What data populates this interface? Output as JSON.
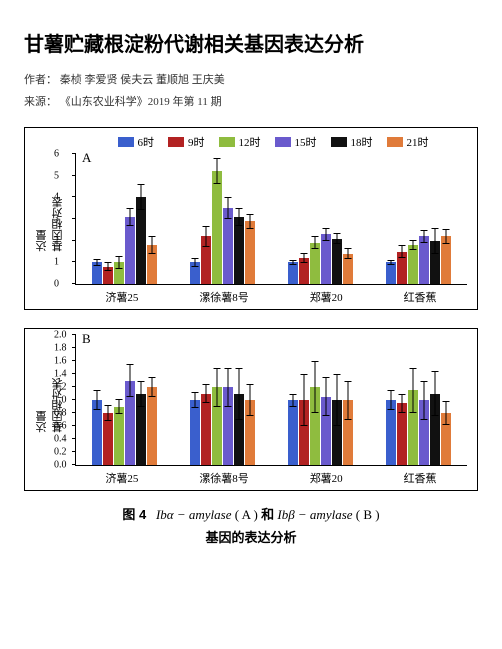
{
  "title": "甘薯贮藏根淀粉代谢相关基因表达分析",
  "authors_label": "作者：",
  "authors": "秦桢  李爱贤  侯夫云  董顺旭  王庆美",
  "source_label": "来源：",
  "source": "《山东农业科学》2019 年第 11 期",
  "legend": [
    {
      "label": "6时",
      "color": "#3a5fcd"
    },
    {
      "label": "9时",
      "color": "#b22222"
    },
    {
      "label": "12时",
      "color": "#8fbc3f"
    },
    {
      "label": "15时",
      "color": "#6a5acd"
    },
    {
      "label": "18时",
      "color": "#111111"
    },
    {
      "label": "21时",
      "color": "#e07b3a"
    }
  ],
  "charts": [
    {
      "panel": "A",
      "ylabel": "基因相对表达量",
      "ymax": 6,
      "yticks": [
        0,
        1,
        2,
        3,
        4,
        5,
        6
      ],
      "categories": [
        "济薯25",
        "漯徐薯8号",
        "郑薯20",
        "红香蕉"
      ],
      "series": [
        {
          "color": "#3a5fcd",
          "values": [
            1.0,
            1.0,
            1.0,
            1.0
          ],
          "err": [
            0.15,
            0.2,
            0.1,
            0.12
          ]
        },
        {
          "color": "#b22222",
          "values": [
            0.8,
            2.2,
            1.2,
            1.5
          ],
          "err": [
            0.2,
            0.5,
            0.25,
            0.3
          ]
        },
        {
          "color": "#8fbc3f",
          "values": [
            1.0,
            5.2,
            1.9,
            1.8
          ],
          "err": [
            0.3,
            0.6,
            0.3,
            0.25
          ]
        },
        {
          "color": "#6a5acd",
          "values": [
            3.1,
            3.5,
            2.3,
            2.2
          ],
          "err": [
            0.4,
            0.5,
            0.3,
            0.3
          ]
        },
        {
          "color": "#111111",
          "values": [
            4.0,
            3.1,
            2.1,
            2.0
          ],
          "err": [
            0.6,
            0.4,
            0.25,
            0.6
          ]
        },
        {
          "color": "#e07b3a",
          "values": [
            1.8,
            2.9,
            1.4,
            2.2
          ],
          "err": [
            0.4,
            0.35,
            0.25,
            0.35
          ]
        }
      ]
    },
    {
      "panel": "B",
      "ylabel": "基因相对表达量",
      "ymax": 2.0,
      "yticks": [
        0.0,
        0.2,
        0.4,
        0.6,
        0.8,
        1.0,
        1.2,
        1.4,
        1.6,
        1.8,
        2.0
      ],
      "categories": [
        "济薯25",
        "漯徐薯8号",
        "郑薯20",
        "红香蕉"
      ],
      "series": [
        {
          "color": "#3a5fcd",
          "values": [
            1.0,
            1.0,
            1.0,
            1.0
          ],
          "err": [
            0.15,
            0.12,
            0.1,
            0.15
          ]
        },
        {
          "color": "#b22222",
          "values": [
            0.8,
            1.1,
            1.0,
            0.95
          ],
          "err": [
            0.12,
            0.15,
            0.4,
            0.15
          ]
        },
        {
          "color": "#8fbc3f",
          "values": [
            0.9,
            1.2,
            1.2,
            1.15
          ],
          "err": [
            0.12,
            0.3,
            0.4,
            0.35
          ]
        },
        {
          "color": "#6a5acd",
          "values": [
            1.3,
            1.2,
            1.05,
            1.0
          ],
          "err": [
            0.25,
            0.3,
            0.3,
            0.3
          ]
        },
        {
          "color": "#111111",
          "values": [
            1.1,
            1.1,
            1.0,
            1.1
          ],
          "err": [
            0.2,
            0.4,
            0.4,
            0.35
          ]
        },
        {
          "color": "#e07b3a",
          "values": [
            1.2,
            1.0,
            1.0,
            0.8
          ],
          "err": [
            0.15,
            0.25,
            0.3,
            0.18
          ]
        }
      ]
    }
  ],
  "caption": {
    "fig_label": "图 4",
    "part1": "Ibα − amylase",
    "a": "( A )",
    "and": "和",
    "part2": "Ibβ − amylase",
    "b": "( B )",
    "line2": "基因的表达分析"
  }
}
